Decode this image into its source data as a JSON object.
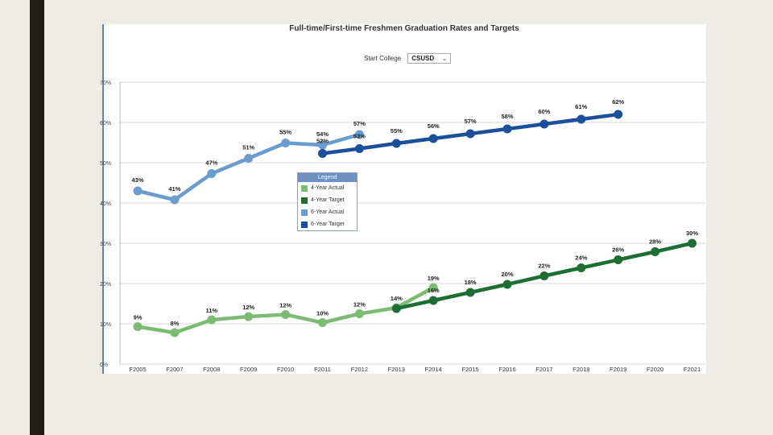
{
  "filter": {
    "label": "Start College",
    "value": "CSUSD"
  },
  "legend": {
    "title": "Legend"
  },
  "chart_data": {
    "type": "line",
    "title": "Full-time/First-time Freshmen Graduation Rates and Targets",
    "categories": [
      "F2005",
      "F2007",
      "F2008",
      "F2009",
      "F2010",
      "F2011",
      "F2012",
      "F2013",
      "F2014",
      "F2015",
      "F2016",
      "F2017",
      "F2018",
      "F2019",
      "F2020",
      "F2021"
    ],
    "ylim": [
      0,
      70
    ],
    "yticks": [
      "0%",
      "10%",
      "20%",
      "30%",
      "40%",
      "50%",
      "60%",
      "70%"
    ],
    "grid": true,
    "legend_position": "center-left",
    "series": [
      {
        "name": "4-Year Actual",
        "color": "#7cbb72",
        "values": [
          9.3,
          7.8,
          11,
          11.8,
          12.3,
          10.3,
          12.5,
          14,
          19,
          null,
          null,
          null,
          null,
          null,
          null,
          null
        ],
        "labels": [
          "9%",
          "8%",
          "11%",
          "12%",
          "12%",
          "10%",
          "12%",
          "14%",
          "19%",
          null,
          null,
          null,
          null,
          null,
          null,
          null
        ]
      },
      {
        "name": "4-Year Target",
        "color": "#1e6e34",
        "values": [
          null,
          null,
          null,
          null,
          null,
          null,
          null,
          13.8,
          15.8,
          17.8,
          19.8,
          21.9,
          23.9,
          25.9,
          27.9,
          30
        ],
        "labels": [
          null,
          null,
          null,
          null,
          null,
          null,
          null,
          null,
          "16%",
          "18%",
          "20%",
          "22%",
          "24%",
          "26%",
          "28%",
          "30%"
        ]
      },
      {
        "name": "6-Year Actual",
        "color": "#6a9ccd",
        "values": [
          43,
          40.8,
          47.3,
          51.1,
          54.9,
          54.4,
          57,
          null,
          null,
          null,
          null,
          null,
          null,
          null,
          null,
          null
        ],
        "labels": [
          "43%",
          "41%",
          "47%",
          "51%",
          "55%",
          "54%",
          "57%",
          null,
          null,
          null,
          null,
          null,
          null,
          null,
          null,
          null
        ]
      },
      {
        "name": "6-Year Target",
        "color": "#1b4e9b",
        "values": [
          null,
          null,
          null,
          null,
          null,
          52.3,
          53.5,
          54.8,
          56,
          57.2,
          58.4,
          59.6,
          60.8,
          62,
          null,
          null
        ],
        "labels": [
          null,
          null,
          null,
          null,
          null,
          "52%",
          "53%",
          "55%",
          "56%",
          "57%",
          "58%",
          "60%",
          "61%",
          "62%",
          null,
          null
        ]
      }
    ]
  }
}
